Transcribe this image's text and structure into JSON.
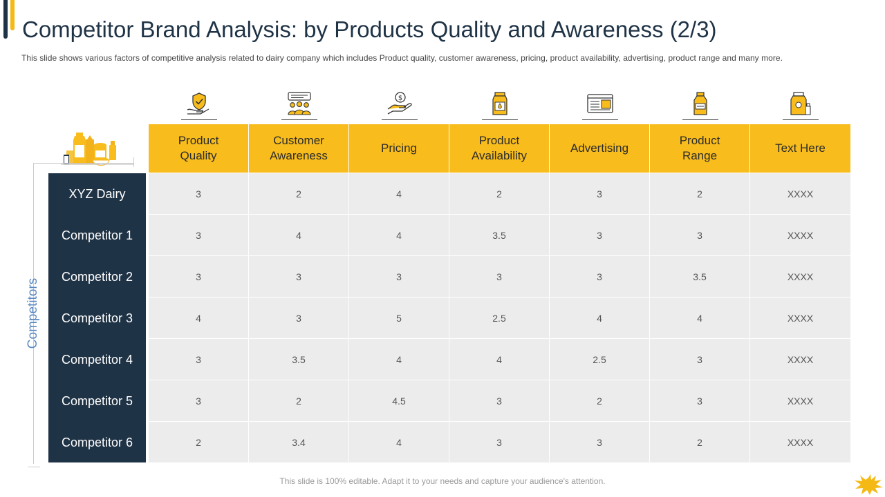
{
  "title": "Competitor Brand Analysis: by Products Quality and Awareness (2/3)",
  "subtitle": "This slide shows various  factors of competitive  analysis related to dairy company which includes Product quality, customer awareness,  pricing, product availability,  advertising,  product range and  many more.",
  "side_label": "Competitors",
  "columns": [
    {
      "label": "Product\nQuality",
      "icon": "hand-shield-check-icon"
    },
    {
      "label": "Customer\nAwareness",
      "icon": "people-group-icon"
    },
    {
      "label": "Pricing",
      "icon": "hand-coin-dollar-icon"
    },
    {
      "label": "Product\nAvailability",
      "icon": "milk-carton-icon"
    },
    {
      "label": "Advertising",
      "icon": "browser-ad-icon"
    },
    {
      "label": "Product\nRange",
      "icon": "milk-bottle-icon"
    },
    {
      "label": "Text Here",
      "icon": "jar-bottle-icon"
    }
  ],
  "rows": [
    {
      "name": "XYZ Dairy",
      "values": [
        "3",
        "2",
        "4",
        "2",
        "3",
        "2",
        "XXXX"
      ]
    },
    {
      "name": "Competitor 1",
      "values": [
        "3",
        "4",
        "4",
        "3.5",
        "3",
        "3",
        "XXXX"
      ]
    },
    {
      "name": "Competitor 2",
      "values": [
        "3",
        "3",
        "3",
        "3",
        "3",
        "3.5",
        "XXXX"
      ]
    },
    {
      "name": "Competitor 3",
      "values": [
        "4",
        "3",
        "5",
        "2.5",
        "4",
        "4",
        "XXXX"
      ]
    },
    {
      "name": "Competitor 4",
      "values": [
        "3",
        "3.5",
        "4",
        "4",
        "2.5",
        "3",
        "XXXX"
      ]
    },
    {
      "name": "Competitor 5",
      "values": [
        "3",
        "2",
        "4.5",
        "3",
        "2",
        "3",
        "XXXX"
      ]
    },
    {
      "name": "Competitor 6",
      "values": [
        "2",
        "3.4",
        "4",
        "3",
        "3",
        "2",
        "XXXX"
      ]
    }
  ],
  "footer": "This slide is 100% editable. Adapt it to your needs and capture your audience's attention.",
  "colors": {
    "navy": "#1f3346",
    "yellow": "#f8bd1c",
    "cell": "#ececec",
    "label_blue": "#5b88c0"
  }
}
